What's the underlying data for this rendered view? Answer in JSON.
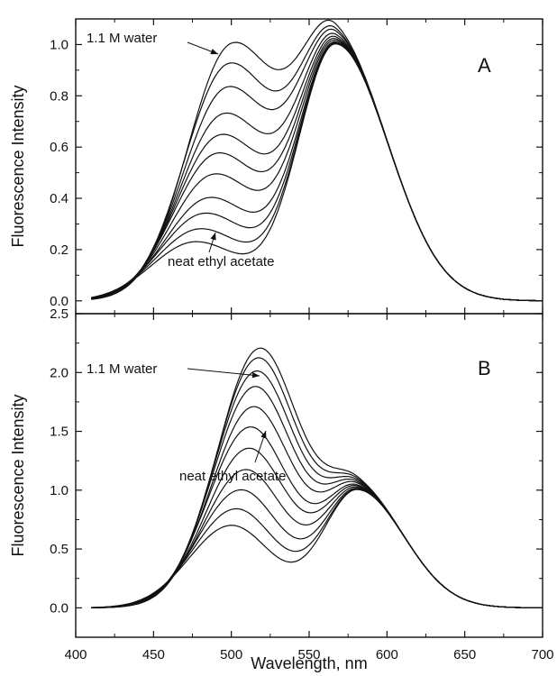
{
  "chart_data": [
    {
      "type": "line",
      "panel_label": "A",
      "xlabel": "Wavelength, nm",
      "ylabel": "Fluorescence Intensity",
      "xlim": [
        400,
        700
      ],
      "ylim": [
        -0.05,
        1.1
      ],
      "xticks": [
        400,
        450,
        500,
        550,
        600,
        650,
        700
      ],
      "yticks": [
        0.0,
        0.2,
        0.4,
        0.6,
        0.8,
        1.0
      ],
      "ytick_labels": [
        "0.0",
        "0.2",
        "0.4",
        "0.6",
        "0.8",
        "1.0"
      ],
      "x_start": 410,
      "x_end": 700,
      "blue_peak_nm": [
        477,
        480,
        483,
        486,
        489,
        491,
        493,
        495,
        497,
        498,
        500
      ],
      "blue_peak_heights": [
        0.23,
        0.28,
        0.34,
        0.4,
        0.49,
        0.57,
        0.64,
        0.72,
        0.82,
        0.91,
        0.985
      ],
      "red_peak_nm": 567,
      "red_peak_height": 1.0,
      "annotations": {
        "top": "1.1 M water",
        "bottom": "neat ethyl acetate"
      },
      "grid": false
    },
    {
      "type": "line",
      "panel_label": "B",
      "xlabel": "Wavelength, nm",
      "ylabel": "Fluorescence Intensity",
      "xlim": [
        400,
        700
      ],
      "ylim": [
        -0.25,
        2.5
      ],
      "xticks": [
        400,
        450,
        500,
        550,
        600,
        650,
        700
      ],
      "xtick_labels": [
        "400",
        "450",
        "500",
        "550",
        "600",
        "650",
        "700"
      ],
      "yticks": [
        0.0,
        0.5,
        1.0,
        1.5,
        2.0,
        2.5
      ],
      "ytick_labels": [
        "0.0",
        "0.5",
        "1.0",
        "1.5",
        "2.0",
        "2.5"
      ],
      "x_start": 410,
      "x_end": 700,
      "blue_peak_nm": [
        500,
        503,
        506,
        509,
        511,
        512,
        514,
        515,
        516,
        517,
        518
      ],
      "blue_peak_heights": [
        0.7,
        0.84,
        1.0,
        1.17,
        1.35,
        1.53,
        1.7,
        1.87,
        2.0,
        2.11,
        2.19
      ],
      "red_peak_nm": 581,
      "red_peak_height": 1.0,
      "annotations": {
        "top": "1.1 M water",
        "bottom": "neat ethyl acetate"
      },
      "grid": false
    }
  ]
}
